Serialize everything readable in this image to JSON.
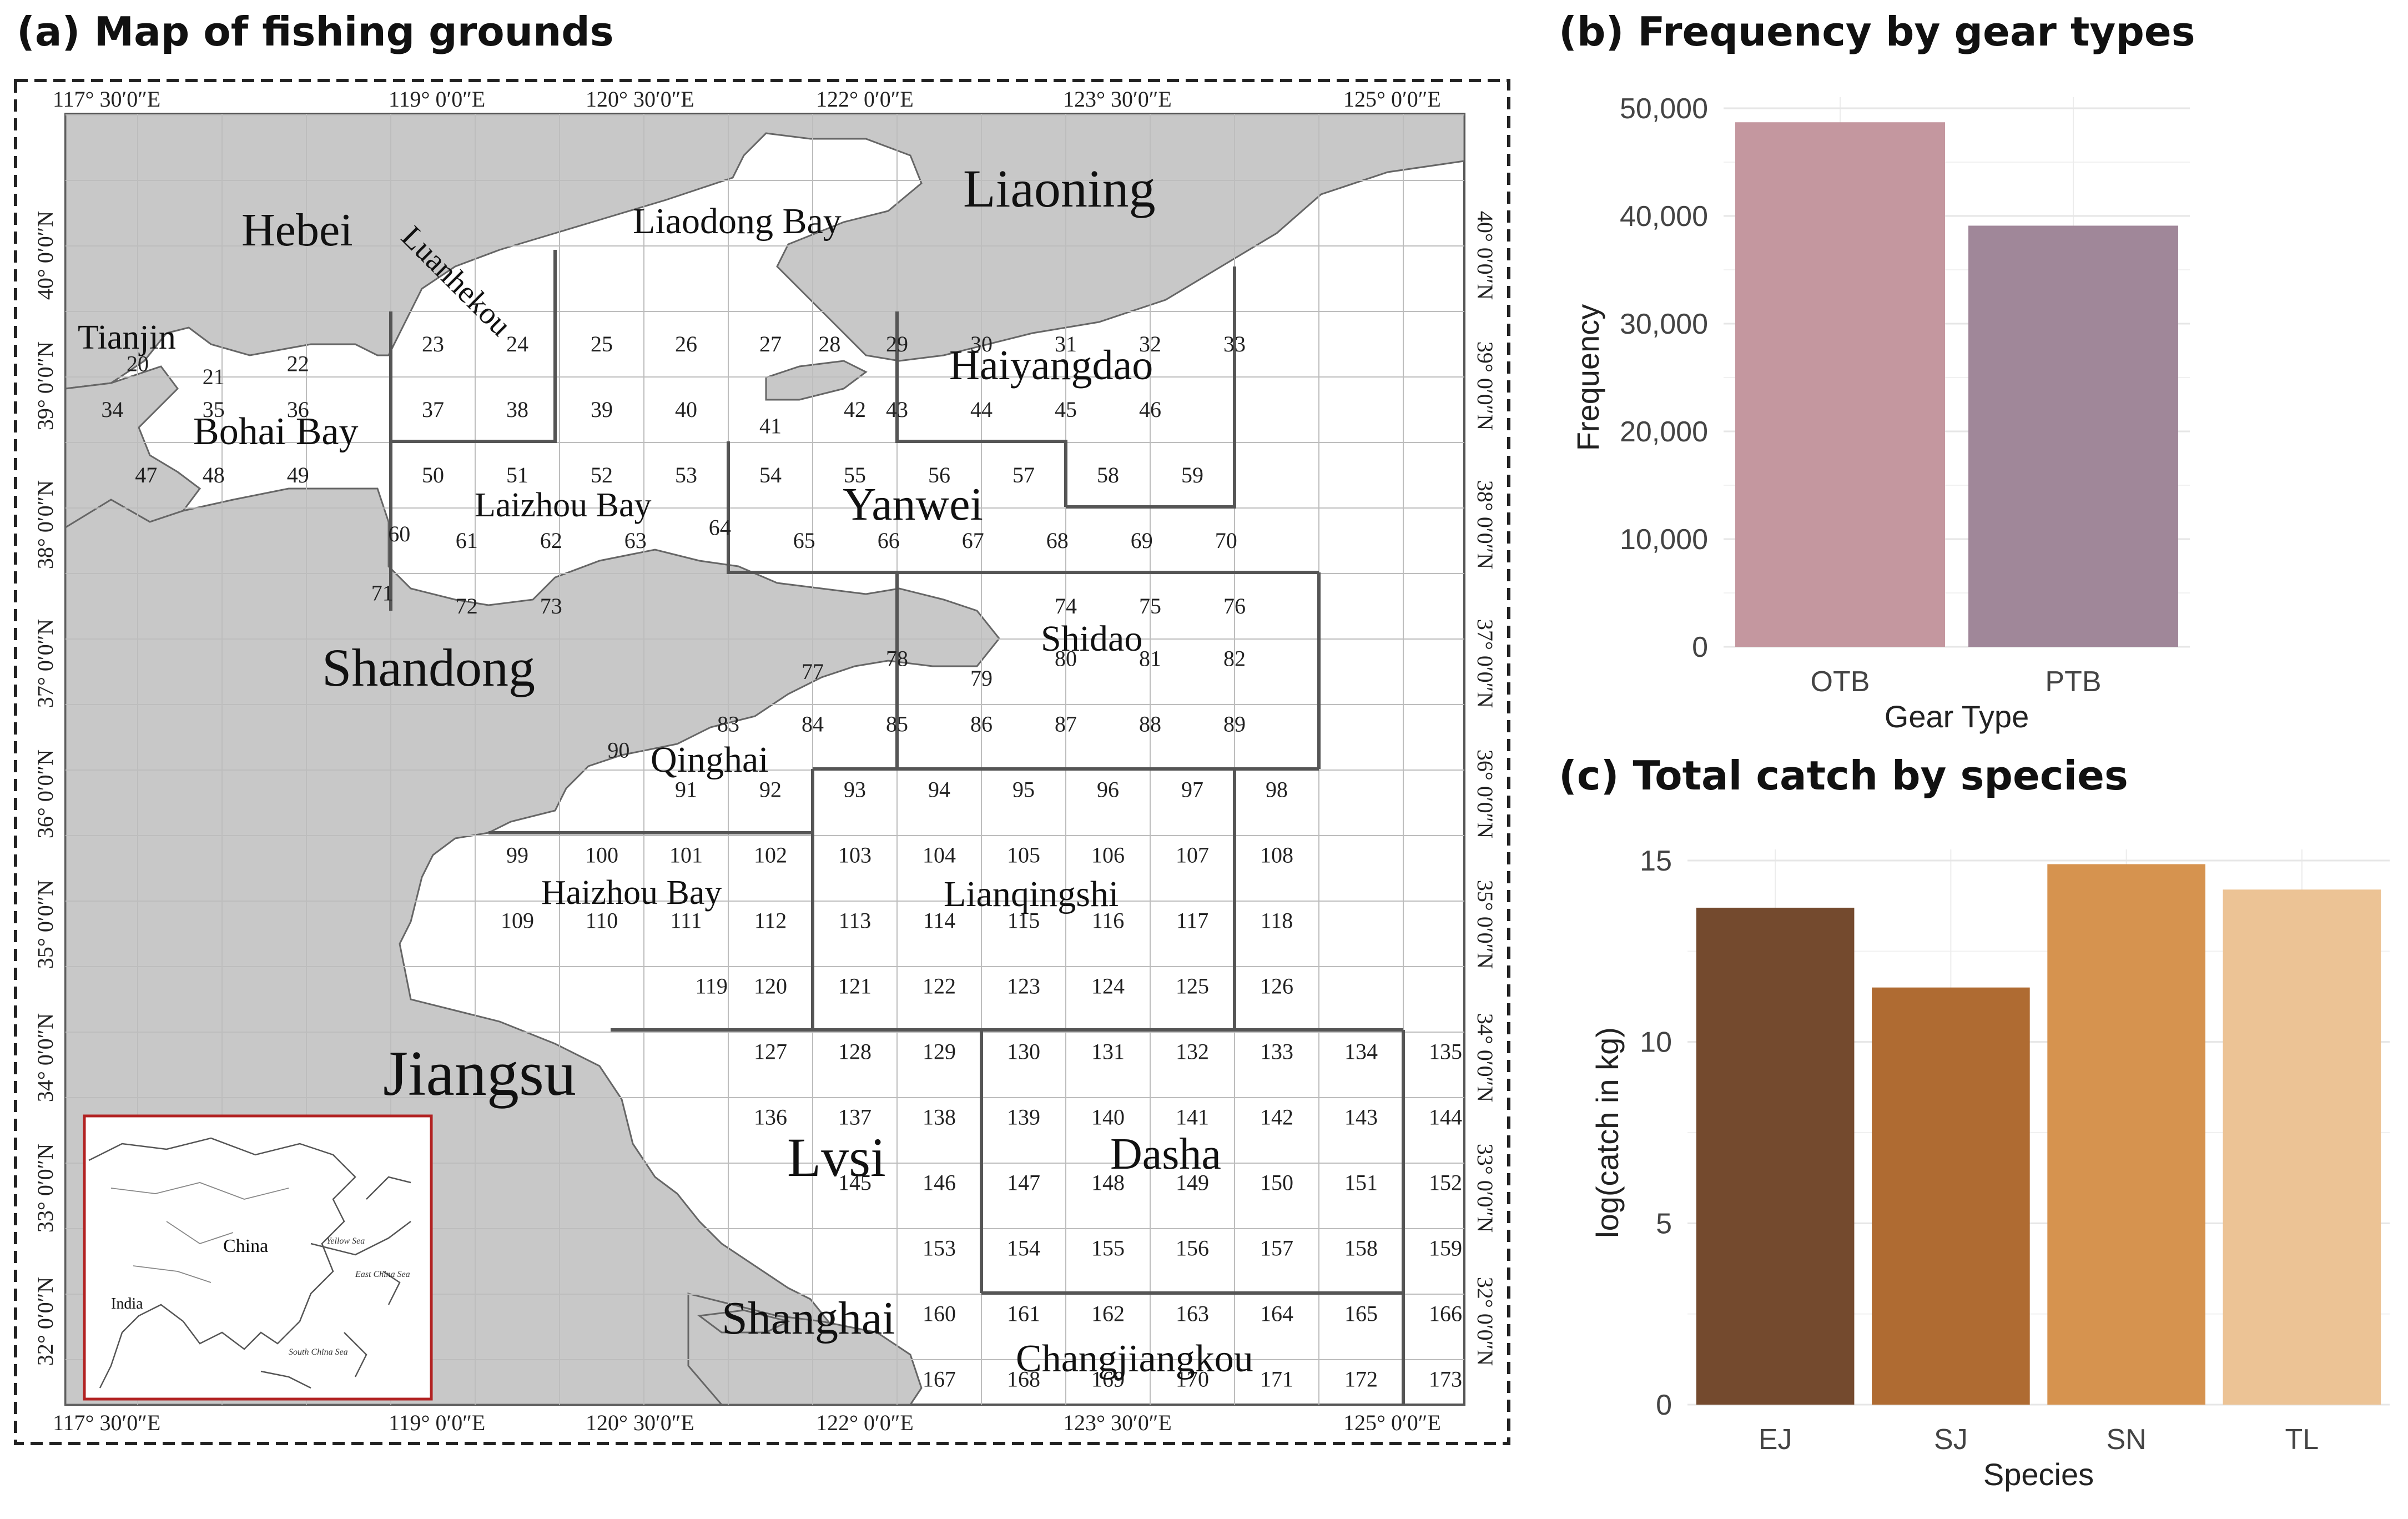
{
  "panels": {
    "a_title": "(a) Map of fishing grounds",
    "b_title": "(b) Frequency by gear types",
    "c_title": "(c) Total catch by species"
  },
  "map": {
    "top_lon_labels": [
      "117°  30′0″E",
      "119°  0′0″E",
      "120°  30′0″E",
      "122°  0′0″E",
      "123°  30′0″E",
      "125°  0′0″E"
    ],
    "bottom_lon_labels": [
      "117°  30′0″E",
      "119°  0′0″E",
      "120°  30′0″E",
      "122°  0′0″E",
      "123°  30′0″E",
      "125°  0′0″E"
    ],
    "lat_labels": [
      "40° 0′0″N",
      "39° 0′0″N",
      "38° 0′0″N",
      "37° 0′0″N",
      "36° 0′0″N",
      "35° 0′0″N",
      "34° 0′0″N",
      "33° 0′0″N",
      "32° 0′0″N"
    ],
    "regions": {
      "liaoning": "Liaoning",
      "hebei": "Hebei",
      "tianjin": "Tianjin",
      "liaodong_bay": "Liaodong Bay",
      "luanhekou": "Luanhekou",
      "bohai_bay": "Bohai Bay",
      "haiyangdao": "Haiyangdao",
      "laizhou_bay": "Laizhou Bay",
      "yanwei": "Yanwei",
      "shandong": "Shandong",
      "shidao": "Shidao",
      "qinghai": "Qinghai",
      "haizhou_bay": "Haizhou Bay",
      "lianqingshi": "Lianqingshi",
      "jiangsu": "Jiangsu",
      "lvsi": "Lvsi",
      "dasha": "Dasha",
      "shanghai": "Shanghai",
      "changjiangkou": "Changjiangkou"
    },
    "inset": {
      "china": "China",
      "india": "India",
      "yellow_sea": "Yellow Sea",
      "east_china_sea": "East China Sea",
      "south_china_sea": "South China Sea"
    },
    "cells": [
      "20",
      "21",
      "22",
      "23",
      "24",
      "25",
      "26",
      "27",
      "28",
      "29",
      "30",
      "31",
      "32",
      "33",
      "34",
      "35",
      "36",
      "37",
      "38",
      "39",
      "40",
      "41",
      "42",
      "43",
      "44",
      "45",
      "46",
      "47",
      "48",
      "49",
      "50",
      "51",
      "52",
      "53",
      "54",
      "55",
      "56",
      "57",
      "58",
      "59",
      "60",
      "61",
      "62",
      "63",
      "64",
      "65",
      "66",
      "67",
      "68",
      "69",
      "70",
      "71",
      "72",
      "73",
      "74",
      "75",
      "76",
      "77",
      "78",
      "79",
      "80",
      "81",
      "82",
      "83",
      "84",
      "85",
      "86",
      "87",
      "88",
      "89",
      "90",
      "91",
      "92",
      "93",
      "94",
      "95",
      "96",
      "97",
      "98",
      "99",
      "100",
      "101",
      "102",
      "103",
      "104",
      "105",
      "106",
      "107",
      "108",
      "109",
      "110",
      "111",
      "112",
      "113",
      "114",
      "115",
      "116",
      "117",
      "118",
      "119",
      "120",
      "121",
      "122",
      "123",
      "124",
      "125",
      "126",
      "127",
      "128",
      "129",
      "130",
      "131",
      "132",
      "133",
      "134",
      "135",
      "136",
      "137",
      "138",
      "139",
      "140",
      "141",
      "142",
      "143",
      "144",
      "145",
      "146",
      "147",
      "148",
      "149",
      "150",
      "151",
      "152",
      "153",
      "154",
      "155",
      "156",
      "157",
      "158",
      "159",
      "160",
      "161",
      "162",
      "163",
      "164",
      "165",
      "166",
      "167",
      "168",
      "169",
      "170",
      "171",
      "172",
      "173"
    ]
  },
  "chart_data": [
    {
      "type": "bar",
      "title": "(b) Frequency by gear types",
      "xlabel": "Gear Type",
      "ylabel": "Frequency",
      "categories": [
        "OTB",
        "PTB"
      ],
      "values": [
        48700,
        39100
      ],
      "ylim": [
        0,
        50000
      ],
      "yticks": [
        "0",
        "10,000",
        "20,000",
        "30,000",
        "40,000",
        "50,000"
      ],
      "colors": [
        "#c4979f",
        "#a08799"
      ],
      "grid": true
    },
    {
      "type": "bar",
      "title": "(c) Total catch by species",
      "xlabel": "Species",
      "ylabel": "log(catch in kg)",
      "categories": [
        "EJ",
        "SJ",
        "SN",
        "TL"
      ],
      "values": [
        13.7,
        11.5,
        14.9,
        14.2
      ],
      "ylim": [
        0,
        15
      ],
      "yticks": [
        "0",
        "5",
        "10",
        "15"
      ],
      "colors": [
        "#744a2e",
        "#af6b32",
        "#d6934f",
        "#ecc395"
      ],
      "grid": true
    }
  ]
}
